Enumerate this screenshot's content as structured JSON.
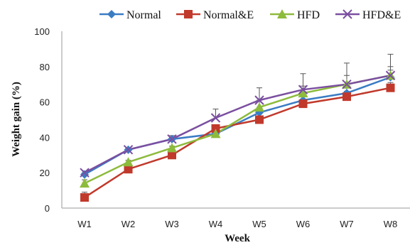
{
  "chart_data": {
    "type": "line",
    "xlabel": "Week",
    "ylabel": "Weight gain (%)",
    "categories": [
      "W1",
      "W2",
      "W3",
      "W4",
      "W5",
      "W6",
      "W7",
      "W8"
    ],
    "ylim": [
      0,
      100
    ],
    "yticks": [
      0,
      20,
      40,
      60,
      80,
      100
    ],
    "grid": false,
    "legend_position": "top",
    "series": [
      {
        "name": "Normal",
        "color": "#3a7cc4",
        "marker": "diamond",
        "values": [
          19,
          33,
          39,
          42,
          54,
          61,
          65,
          74
        ],
        "errors": [
          1,
          1,
          1,
          2,
          3,
          3,
          3,
          4
        ]
      },
      {
        "name": "Normal&E",
        "color": "#c0392b",
        "marker": "square",
        "values": [
          6,
          22,
          30,
          45,
          50,
          59,
          63,
          68
        ],
        "errors": [
          3,
          1,
          1,
          1,
          2,
          2,
          3,
          3
        ]
      },
      {
        "name": "HFD",
        "color": "#8dbb3c",
        "marker": "triangle",
        "values": [
          14,
          26,
          34,
          42,
          57,
          65,
          70,
          75
        ],
        "errors": [
          2,
          1,
          1,
          2,
          4,
          4,
          5,
          5
        ]
      },
      {
        "name": "HFD&E",
        "color": "#7b4fa0",
        "marker": "x",
        "values": [
          20,
          33,
          39,
          51,
          61,
          67,
          70,
          75
        ],
        "errors": [
          1,
          1,
          2,
          5,
          7,
          9,
          12,
          12
        ]
      }
    ]
  }
}
